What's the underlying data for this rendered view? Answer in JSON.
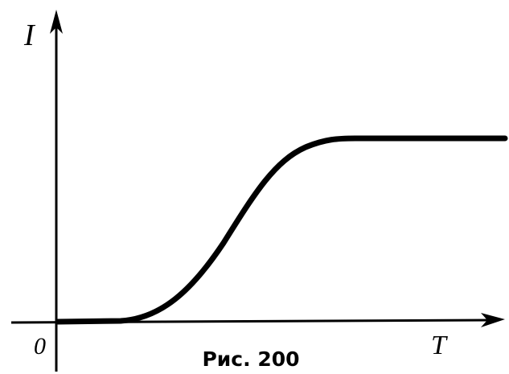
{
  "axes": {
    "y_label": "I",
    "x_label": "T",
    "origin": "0"
  },
  "caption": "Рис. 200"
}
